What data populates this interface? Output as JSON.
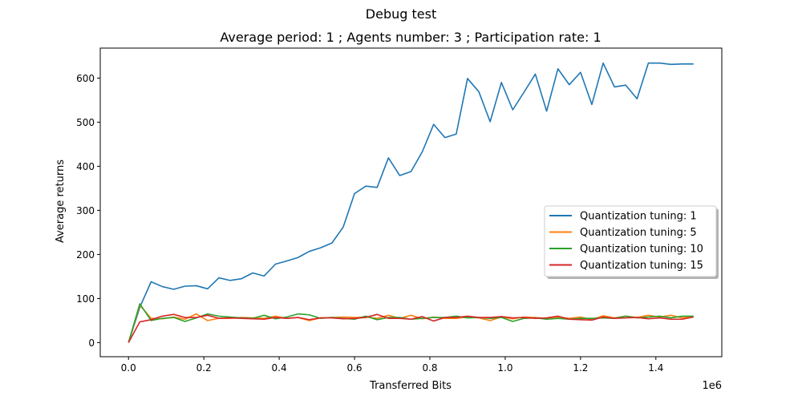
{
  "figure": {
    "suptitle": "Debug test"
  },
  "chart_data": {
    "type": "line",
    "title": "Average period: 1 ; Agents number: 3 ; Participation rate: 1",
    "xlabel": "Transferred Bits",
    "ylabel": "Average returns",
    "x_offset_text": "1e6",
    "xlim": [
      -0.075,
      1.575
    ],
    "ylim": [
      -32,
      668
    ],
    "x_ticks": [
      0.0,
      0.2,
      0.4,
      0.6,
      0.8,
      1.0,
      1.2,
      1.4
    ],
    "x_tick_labels": [
      "0.0",
      "0.2",
      "0.4",
      "0.6",
      "0.8",
      "1.0",
      "1.2",
      "1.4"
    ],
    "y_ticks": [
      0,
      100,
      200,
      300,
      400,
      500,
      600
    ],
    "y_tick_labels": [
      "0",
      "100",
      "200",
      "300",
      "400",
      "500",
      "600"
    ],
    "grid": false,
    "legend_position": "center-right",
    "x": [
      0.0,
      0.03,
      0.06,
      0.09,
      0.12,
      0.15,
      0.18,
      0.21,
      0.24,
      0.27,
      0.3,
      0.33,
      0.36,
      0.39,
      0.42,
      0.45,
      0.48,
      0.51,
      0.54,
      0.57,
      0.6,
      0.63,
      0.66,
      0.69,
      0.72,
      0.75,
      0.78,
      0.81,
      0.84,
      0.87,
      0.9,
      0.93,
      0.96,
      0.99,
      1.02,
      1.05,
      1.08,
      1.11,
      1.14,
      1.17,
      1.2,
      1.23,
      1.26,
      1.29,
      1.32,
      1.35,
      1.38,
      1.41,
      1.44,
      1.47,
      1.5
    ],
    "series": [
      {
        "name": "Quantization tuning: 1",
        "color": "#1f77b4",
        "values": [
          0,
          80,
          138,
          127,
          121,
          128,
          129,
          122,
          147,
          141,
          145,
          158,
          151,
          178,
          185,
          193,
          207,
          215,
          226,
          262,
          338,
          355,
          352,
          419,
          379,
          388,
          433,
          495,
          465,
          473,
          599,
          569,
          501,
          590,
          528,
          568,
          609,
          525,
          621,
          585,
          613,
          540,
          634,
          580,
          584,
          553,
          634,
          634,
          631,
          632,
          632
        ]
      },
      {
        "name": "Quantization tuning: 5",
        "color": "#ff7f0e",
        "values": [
          0,
          85,
          55,
          54,
          58,
          53,
          65,
          50,
          55,
          55,
          57,
          56,
          55,
          60,
          55,
          57,
          50,
          56,
          57,
          58,
          57,
          58,
          55,
          62,
          55,
          62,
          54,
          58,
          55,
          55,
          58,
          56,
          50,
          58,
          54,
          58,
          57,
          55,
          58,
          55,
          58,
          52,
          61,
          56,
          60,
          57,
          62,
          58,
          62,
          56,
          60
        ]
      },
      {
        "name": "Quantization tuning: 10",
        "color": "#2ca02c",
        "values": [
          0,
          88,
          50,
          55,
          57,
          48,
          56,
          65,
          60,
          58,
          56,
          55,
          62,
          54,
          58,
          65,
          63,
          55,
          57,
          55,
          53,
          60,
          52,
          57,
          57,
          53,
          55,
          57,
          57,
          60,
          56,
          57,
          55,
          57,
          48,
          55,
          56,
          53,
          55,
          53,
          55,
          55,
          56,
          55,
          60,
          56,
          58,
          60,
          56,
          60,
          60
        ]
      },
      {
        "name": "Quantization tuning: 15",
        "color": "#d62728",
        "values": [
          0,
          47,
          52,
          60,
          64,
          57,
          57,
          62,
          55,
          56,
          55,
          54,
          53,
          57,
          55,
          57,
          52,
          56,
          56,
          54,
          55,
          57,
          64,
          55,
          55,
          53,
          59,
          49,
          57,
          57,
          60,
          57,
          57,
          59,
          56,
          57,
          55,
          56,
          60,
          53,
          52,
          51,
          58,
          55,
          56,
          57,
          54,
          56,
          53,
          53,
          58
        ]
      }
    ]
  }
}
